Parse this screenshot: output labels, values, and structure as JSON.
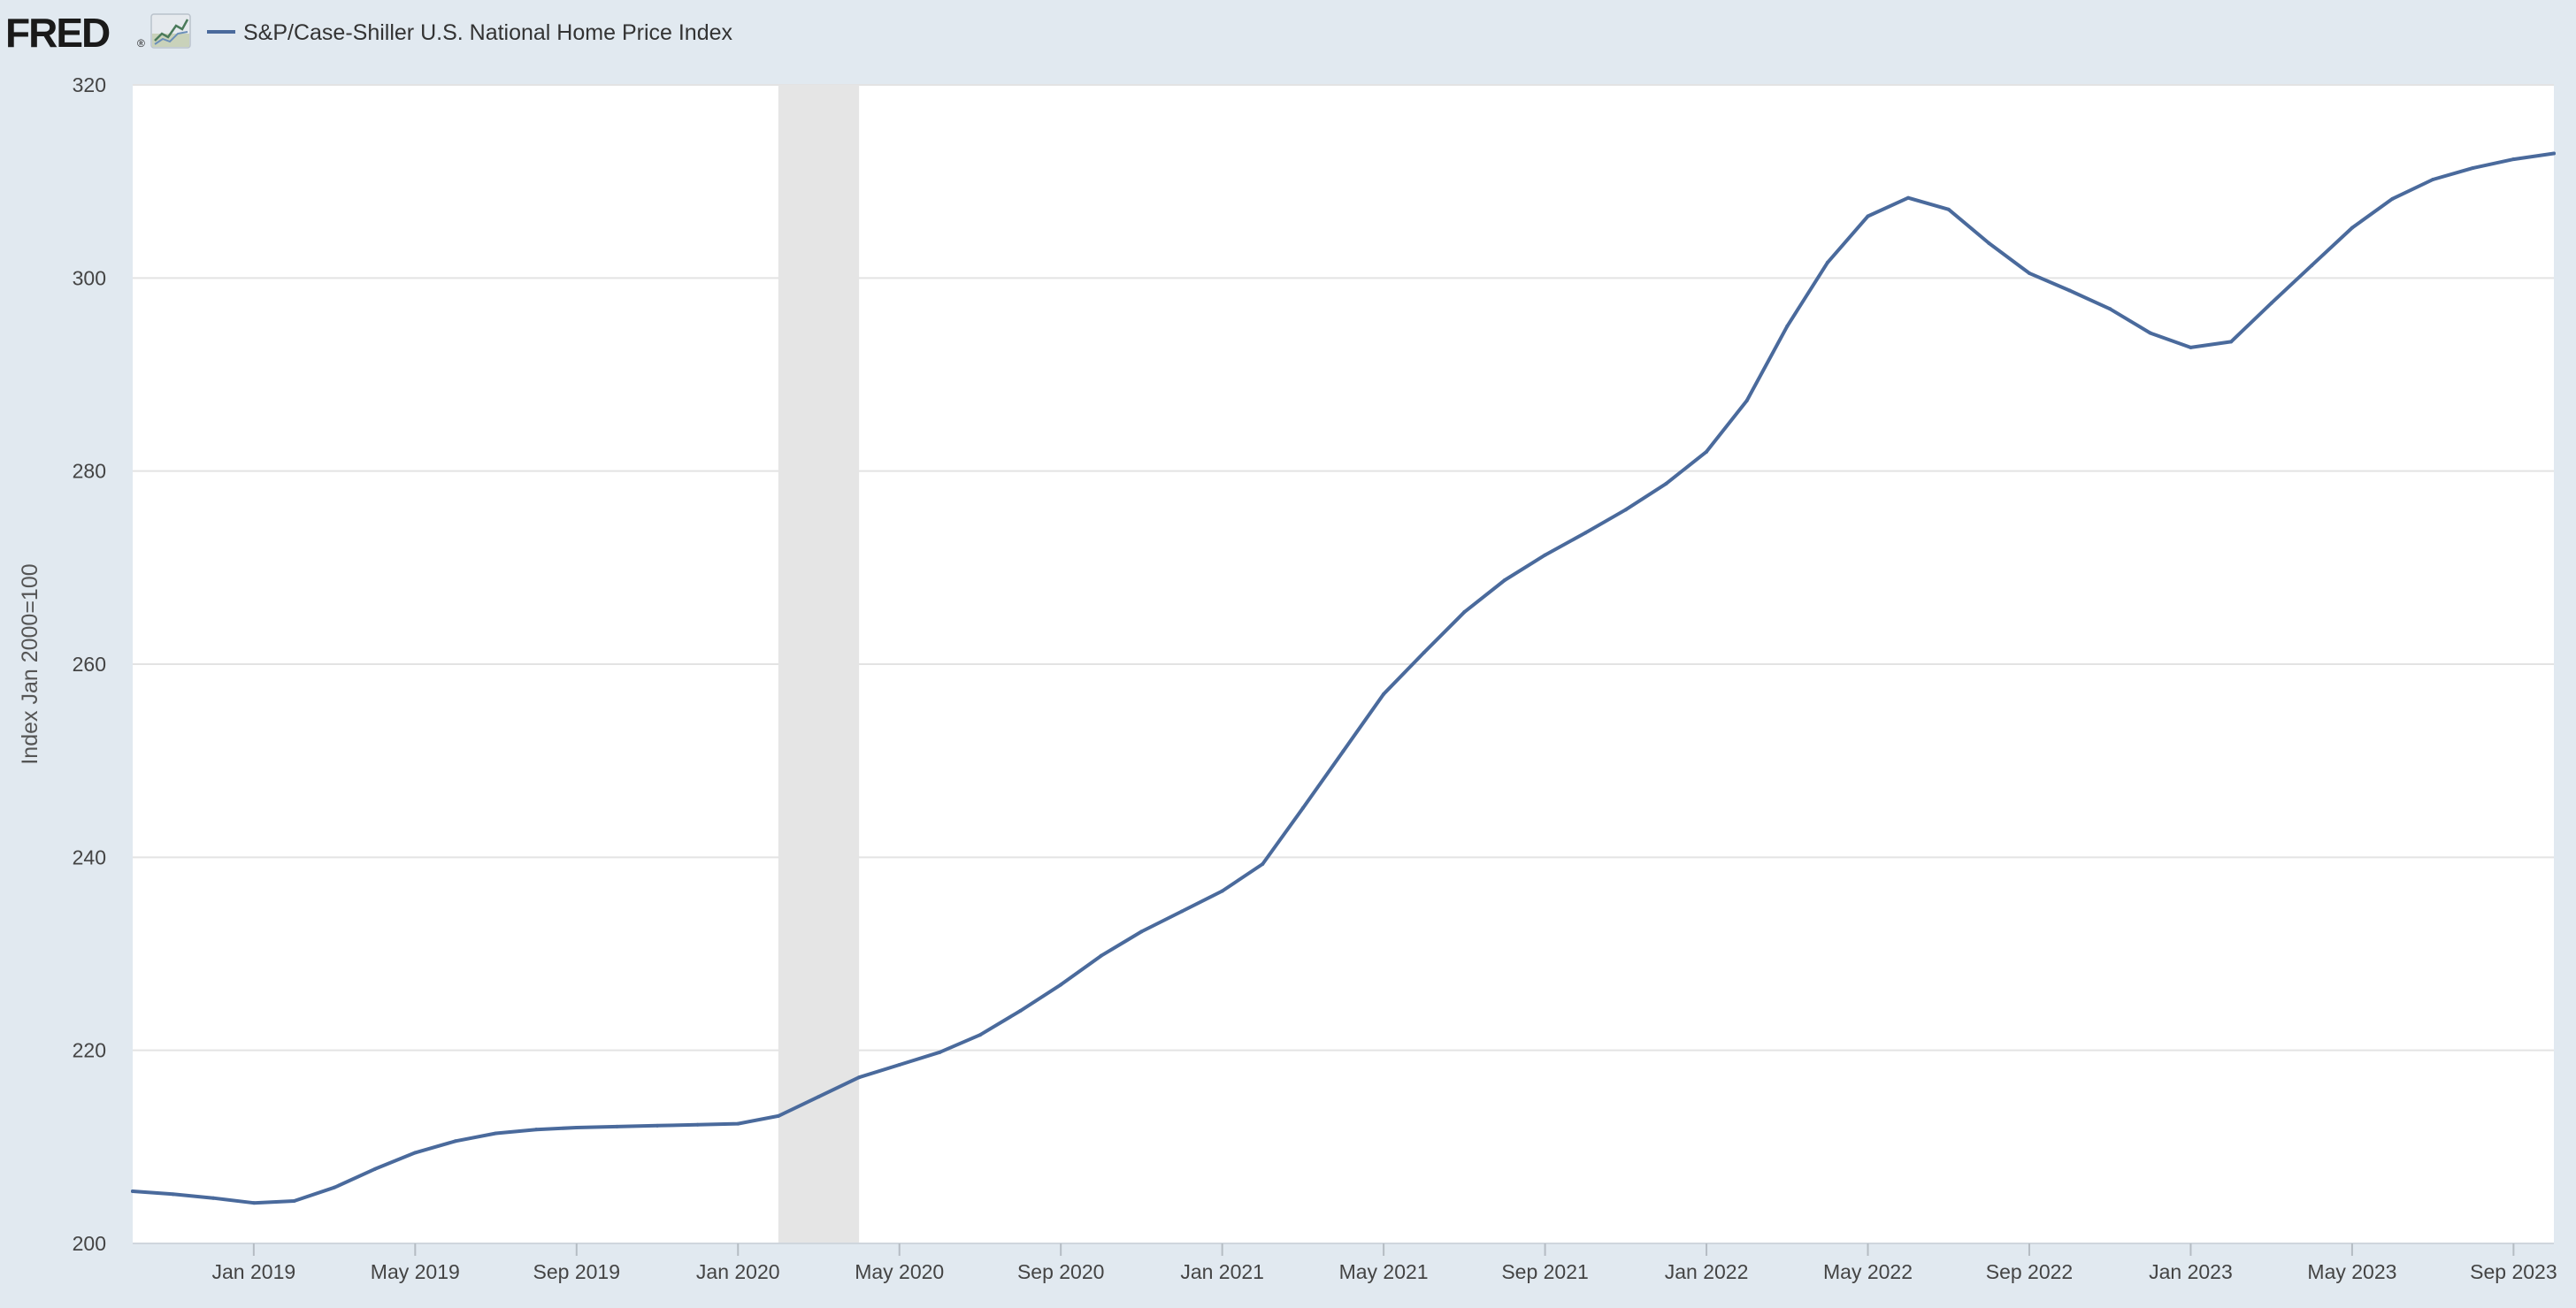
{
  "header": {
    "logo_text": "FRED",
    "logo_registered": "®",
    "legend_label": "S&P/Case-Shiller U.S. National Home Price Index"
  },
  "colors": {
    "page_background": "#e1e9f0",
    "plot_background": "#ffffff",
    "series_line": "#4a6a9c",
    "recession_band": "#e5e5e5",
    "gridline": "#e3e3e3",
    "tick_text": "#444444",
    "axis_title_text": "#555555",
    "logo_text": "#1a1a1a"
  },
  "icons": {
    "logo_chart": "fred-chart-icon",
    "legend_swatch": "legend-line-swatch"
  },
  "chart_data": {
    "type": "line",
    "title": "",
    "xlabel": "",
    "ylabel": "Index Jan 2000=100",
    "ylim": [
      200,
      320
    ],
    "xlim": [
      "2018-10",
      "2023-10"
    ],
    "grid": "horizontal",
    "legend_position": "top-left",
    "y_ticks": [
      200,
      220,
      240,
      260,
      280,
      300,
      320
    ],
    "x_ticks": [
      {
        "label": "Jan 2019",
        "x": "2019-01"
      },
      {
        "label": "May 2019",
        "x": "2019-05"
      },
      {
        "label": "Sep 2019",
        "x": "2019-09"
      },
      {
        "label": "Jan 2020",
        "x": "2020-01"
      },
      {
        "label": "May 2020",
        "x": "2020-05"
      },
      {
        "label": "Sep 2020",
        "x": "2020-09"
      },
      {
        "label": "Jan 2021",
        "x": "2021-01"
      },
      {
        "label": "May 2021",
        "x": "2021-05"
      },
      {
        "label": "Sep 2021",
        "x": "2021-09"
      },
      {
        "label": "Jan 2022",
        "x": "2022-01"
      },
      {
        "label": "May 2022",
        "x": "2022-05"
      },
      {
        "label": "Sep 2022",
        "x": "2022-09"
      },
      {
        "label": "Jan 2023",
        "x": "2023-01"
      },
      {
        "label": "May 2023",
        "x": "2023-05"
      },
      {
        "label": "Sep 2023",
        "x": "2023-09"
      }
    ],
    "recession_shading": {
      "start": "2020-02",
      "end": "2020-04"
    },
    "series": [
      {
        "name": "S&P/Case-Shiller U.S. National Home Price Index",
        "x": [
          "2018-10",
          "2018-11",
          "2018-12",
          "2019-01",
          "2019-02",
          "2019-03",
          "2019-04",
          "2019-05",
          "2019-06",
          "2019-07",
          "2019-08",
          "2019-09",
          "2019-10",
          "2019-11",
          "2019-12",
          "2020-01",
          "2020-02",
          "2020-03",
          "2020-04",
          "2020-05",
          "2020-06",
          "2020-07",
          "2020-08",
          "2020-09",
          "2020-10",
          "2020-11",
          "2020-12",
          "2021-01",
          "2021-02",
          "2021-03",
          "2021-04",
          "2021-05",
          "2021-06",
          "2021-07",
          "2021-08",
          "2021-09",
          "2021-10",
          "2021-11",
          "2021-12",
          "2022-01",
          "2022-02",
          "2022-03",
          "2022-04",
          "2022-05",
          "2022-06",
          "2022-07",
          "2022-08",
          "2022-09",
          "2022-10",
          "2022-11",
          "2022-12",
          "2023-01",
          "2023-02",
          "2023-03",
          "2023-04",
          "2023-05",
          "2023-06",
          "2023-07",
          "2023-08",
          "2023-09",
          "2023-10"
        ],
        "values": [
          205.4,
          205.1,
          204.7,
          204.2,
          204.4,
          205.8,
          207.7,
          209.4,
          210.6,
          211.4,
          211.8,
          212.0,
          212.1,
          212.2,
          212.3,
          212.4,
          213.2,
          215.2,
          217.2,
          218.5,
          219.8,
          221.6,
          224.1,
          226.8,
          229.8,
          232.3,
          234.4,
          236.5,
          239.3,
          245.1,
          251.0,
          256.9,
          261.2,
          265.4,
          268.7,
          271.3,
          273.6,
          276.0,
          278.7,
          282.0,
          287.3,
          295.0,
          301.6,
          306.4,
          308.3,
          307.1,
          303.6,
          300.5,
          298.7,
          296.8,
          294.3,
          292.8,
          293.4,
          297.4,
          301.3,
          305.2,
          308.2,
          310.2,
          311.4,
          312.3,
          312.9
        ]
      }
    ]
  }
}
